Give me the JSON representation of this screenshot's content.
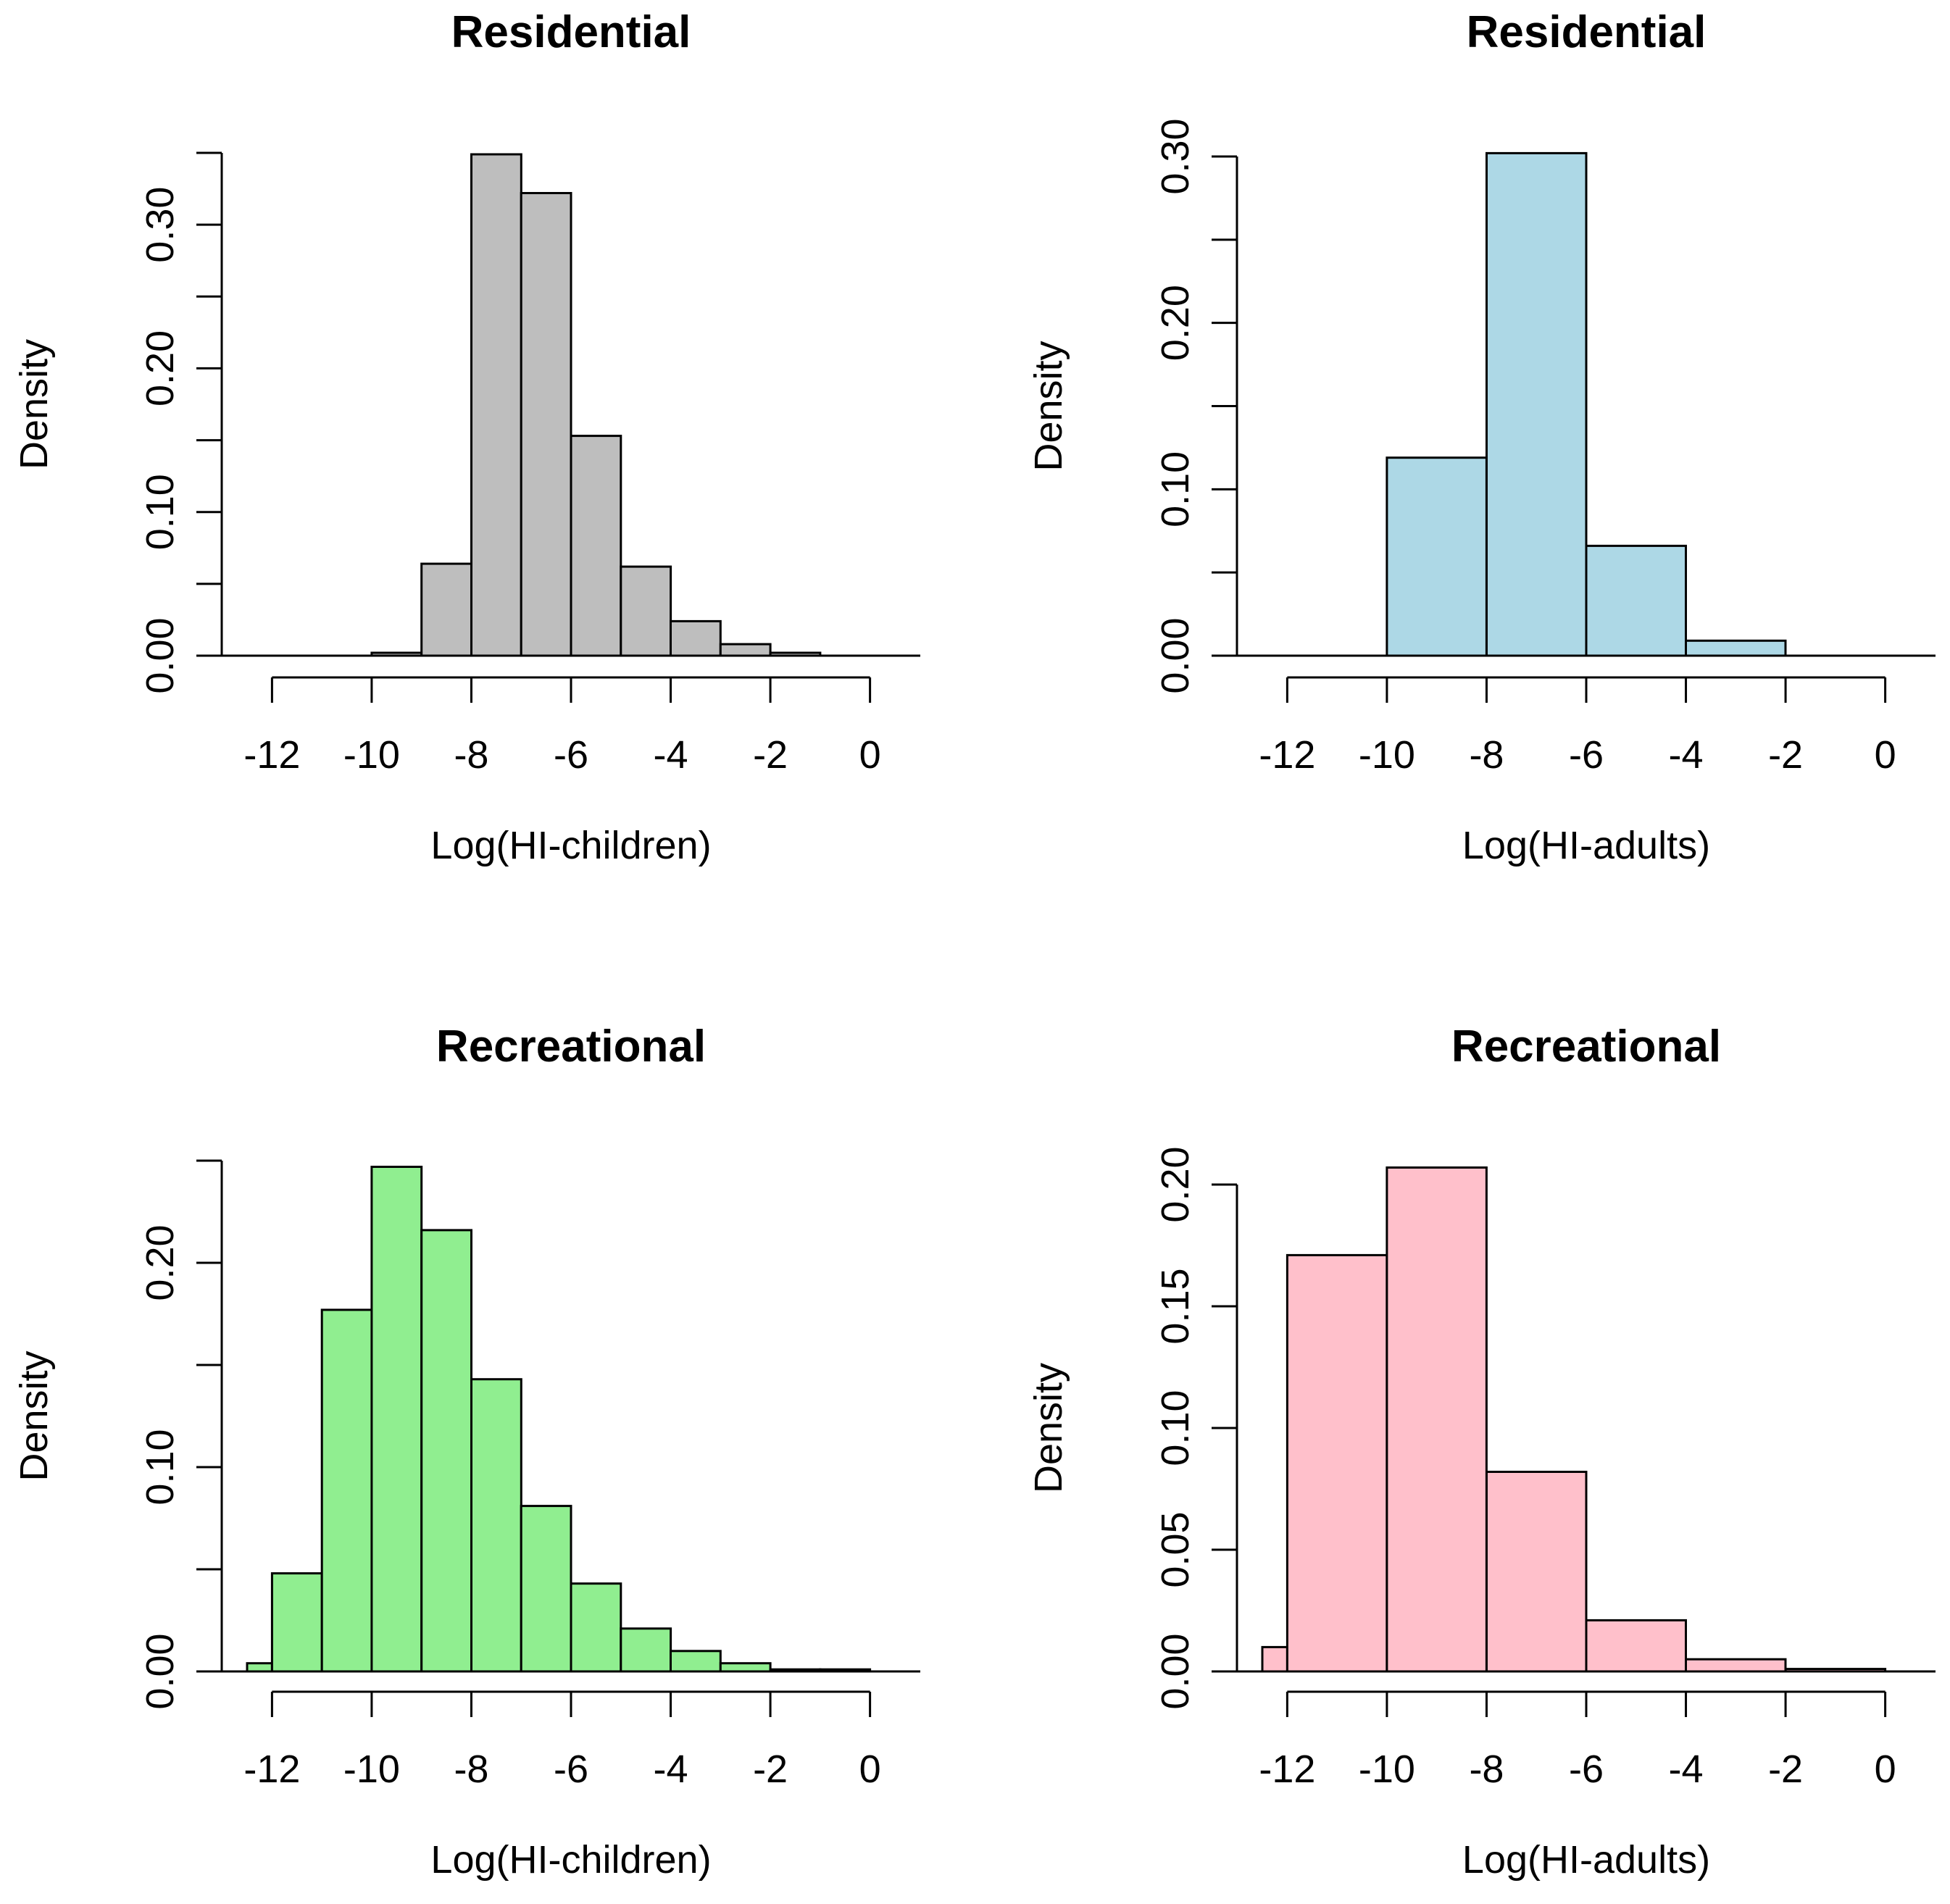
{
  "chart_data": [
    {
      "type": "bar",
      "title": "Residential",
      "xlabel": "Log(HI-children)",
      "ylabel": "Density",
      "fill": "#bebebe",
      "xlim": [
        -12.5,
        0.5
      ],
      "ylim": [
        0,
        0.35
      ],
      "xticks": [
        -12,
        -10,
        -8,
        -6,
        -4,
        -2,
        0
      ],
      "xtick_labels": [
        "-12",
        "-10",
        "-8",
        "-6",
        "-4",
        "-2",
        "0"
      ],
      "yticks": [
        0,
        0.05,
        0.1,
        0.15,
        0.2,
        0.25,
        0.3,
        0.35
      ],
      "ytick_labels": [
        "0.00",
        "",
        "0.10",
        "",
        "0.20",
        "",
        "0.30",
        ""
      ],
      "bins": [
        {
          "x0": -12.5,
          "x1": -12,
          "value": 0
        },
        {
          "x0": -12,
          "x1": -11,
          "value": 0
        },
        {
          "x0": -11,
          "x1": -10,
          "value": 0
        },
        {
          "x0": -10,
          "x1": -9,
          "value": 0.002
        },
        {
          "x0": -9,
          "x1": -8,
          "value": 0.064
        },
        {
          "x0": -8,
          "x1": -7,
          "value": 0.349
        },
        {
          "x0": -7,
          "x1": -6,
          "value": 0.322
        },
        {
          "x0": -6,
          "x1": -5,
          "value": 0.153
        },
        {
          "x0": -5,
          "x1": -4,
          "value": 0.062
        },
        {
          "x0": -4,
          "x1": -3,
          "value": 0.024
        },
        {
          "x0": -3,
          "x1": -2,
          "value": 0.008
        },
        {
          "x0": -2,
          "x1": -1,
          "value": 0.002
        }
      ]
    },
    {
      "type": "bar",
      "title": "Residential",
      "xlabel": "Log(HI-adults)",
      "ylabel": "Density",
      "fill": "#add8e6",
      "xlim": [
        -12.5,
        0.5
      ],
      "ylim": [
        0,
        0.3
      ],
      "xticks": [
        -12,
        -10,
        -8,
        -6,
        -4,
        -2,
        0
      ],
      "xtick_labels": [
        "-12",
        "-10",
        "-8",
        "-6",
        "-4",
        "-2",
        "0"
      ],
      "yticks": [
        0,
        0.05,
        0.1,
        0.15,
        0.2,
        0.25,
        0.3
      ],
      "ytick_labels": [
        "0.00",
        "",
        "0.10",
        "",
        "0.20",
        "",
        "0.30"
      ],
      "bins": [
        {
          "x0": -10,
          "x1": -8,
          "value": 0.119
        },
        {
          "x0": -8,
          "x1": -6,
          "value": 0.302
        },
        {
          "x0": -6,
          "x1": -4,
          "value": 0.066
        },
        {
          "x0": -4,
          "x1": -2,
          "value": 0.009
        }
      ]
    },
    {
      "type": "bar",
      "title": "Recreational",
      "xlabel": "Log(HI-children)",
      "ylabel": "Density",
      "fill": "#90ee90",
      "xlim": [
        -12.5,
        0.5
      ],
      "ylim": [
        0,
        0.25
      ],
      "xticks": [
        -12,
        -10,
        -8,
        -6,
        -4,
        -2,
        0
      ],
      "xtick_labels": [
        "-12",
        "-10",
        "-8",
        "-6",
        "-4",
        "-2",
        "0"
      ],
      "yticks": [
        0,
        0.05,
        0.1,
        0.15,
        0.2,
        0.25
      ],
      "ytick_labels": [
        "0.00",
        "",
        "0.10",
        "",
        "0.20",
        ""
      ],
      "bins": [
        {
          "x0": -12.5,
          "x1": -12,
          "value": 0.004
        },
        {
          "x0": -12,
          "x1": -11,
          "value": 0.048
        },
        {
          "x0": -11,
          "x1": -10,
          "value": 0.177
        },
        {
          "x0": -10,
          "x1": -9,
          "value": 0.247
        },
        {
          "x0": -9,
          "x1": -8,
          "value": 0.216
        },
        {
          "x0": -8,
          "x1": -7,
          "value": 0.143
        },
        {
          "x0": -7,
          "x1": -6,
          "value": 0.081
        },
        {
          "x0": -6,
          "x1": -5,
          "value": 0.043
        },
        {
          "x0": -5,
          "x1": -4,
          "value": 0.021
        },
        {
          "x0": -4,
          "x1": -3,
          "value": 0.01
        },
        {
          "x0": -3,
          "x1": -2,
          "value": 0.004
        },
        {
          "x0": -2,
          "x1": -1,
          "value": 0.001
        },
        {
          "x0": -1,
          "x1": 0,
          "value": 0.001
        }
      ]
    },
    {
      "type": "bar",
      "title": "Recreational",
      "xlabel": "Log(HI-adults)",
      "ylabel": "Density",
      "fill": "#ffc0cb",
      "xlim": [
        -12.5,
        0.5
      ],
      "ylim": [
        0,
        0.2
      ],
      "xticks": [
        -12,
        -10,
        -8,
        -6,
        -4,
        -2,
        0
      ],
      "xtick_labels": [
        "-12",
        "-10",
        "-8",
        "-6",
        "-4",
        "-2",
        "0"
      ],
      "yticks": [
        0,
        0.05,
        0.1,
        0.15,
        0.2
      ],
      "ytick_labels": [
        "0.00",
        "0.05",
        "0.10",
        "0.15",
        "0.20"
      ],
      "bins": [
        {
          "x0": -12.5,
          "x1": -12,
          "value": 0.01
        },
        {
          "x0": -12,
          "x1": -10,
          "value": 0.171
        },
        {
          "x0": -10,
          "x1": -8,
          "value": 0.207
        },
        {
          "x0": -8,
          "x1": -6,
          "value": 0.082
        },
        {
          "x0": -6,
          "x1": -4,
          "value": 0.021
        },
        {
          "x0": -4,
          "x1": -2,
          "value": 0.005
        },
        {
          "x0": -2,
          "x1": 0,
          "value": 0.001
        }
      ]
    }
  ]
}
